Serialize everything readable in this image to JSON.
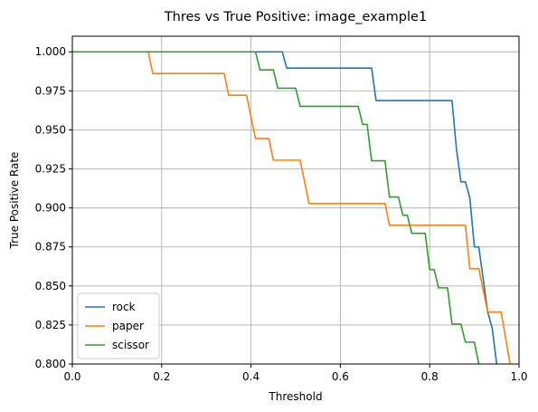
{
  "chart_data": {
    "type": "line",
    "title": "Thres vs True Positive: image_example1",
    "xlabel": "Threshold",
    "ylabel": "True Positive Rate",
    "xlim": [
      0.0,
      1.0
    ],
    "ylim": [
      0.8,
      1.01
    ],
    "xticks": [
      "0.0",
      "0.2",
      "0.4",
      "0.6",
      "0.8",
      "1.0"
    ],
    "xtick_values": [
      0.0,
      0.2,
      0.4,
      0.6,
      0.8,
      1.0
    ],
    "yticks": [
      "0.800",
      "0.825",
      "0.850",
      "0.875",
      "0.900",
      "0.925",
      "0.950",
      "0.975",
      "1.000"
    ],
    "ytick_values": [
      0.8,
      0.825,
      0.85,
      0.875,
      0.9,
      0.925,
      0.95,
      0.975,
      1.0
    ],
    "grid": true,
    "legend_position": "lower-left",
    "series": [
      {
        "name": "rock",
        "color": "#1f77b4",
        "x": [
          0.0,
          0.47,
          0.48,
          0.67,
          0.68,
          0.85,
          0.86,
          0.87,
          0.88,
          0.89,
          0.9,
          0.91,
          0.93,
          0.93,
          0.94,
          0.95
        ],
        "y": [
          1.0,
          1.0,
          0.9896,
          0.9896,
          0.9688,
          0.9688,
          0.9375,
          0.9167,
          0.9167,
          0.9063,
          0.875,
          0.875,
          0.8333,
          0.8333,
          0.8229,
          0.8
        ]
      },
      {
        "name": "paper",
        "color": "#ff7f0e",
        "x": [
          0.0,
          0.17,
          0.18,
          0.34,
          0.35,
          0.39,
          0.41,
          0.44,
          0.45,
          0.51,
          0.53,
          0.7,
          0.71,
          0.88,
          0.89,
          0.91,
          0.93,
          0.96,
          0.98
        ],
        "y": [
          1.0,
          1.0,
          0.9861,
          0.9861,
          0.9722,
          0.9722,
          0.9444,
          0.9444,
          0.9306,
          0.9306,
          0.9028,
          0.9028,
          0.8889,
          0.8889,
          0.8611,
          0.8611,
          0.8333,
          0.8333,
          0.8
        ]
      },
      {
        "name": "scissor",
        "color": "#2ca02c",
        "x": [
          0.0,
          0.41,
          0.42,
          0.45,
          0.46,
          0.5,
          0.51,
          0.64,
          0.65,
          0.66,
          0.67,
          0.7,
          0.71,
          0.73,
          0.74,
          0.75,
          0.76,
          0.79,
          0.8,
          0.81,
          0.82,
          0.84,
          0.85,
          0.87,
          0.88,
          0.9,
          0.91
        ],
        "y": [
          1.0,
          1.0,
          0.9884,
          0.9884,
          0.9767,
          0.9767,
          0.9651,
          0.9651,
          0.9535,
          0.9535,
          0.9302,
          0.9302,
          0.907,
          0.907,
          0.8953,
          0.8953,
          0.8837,
          0.8837,
          0.8605,
          0.8605,
          0.8488,
          0.8488,
          0.8256,
          0.8256,
          0.814,
          0.814,
          0.8
        ]
      }
    ]
  }
}
